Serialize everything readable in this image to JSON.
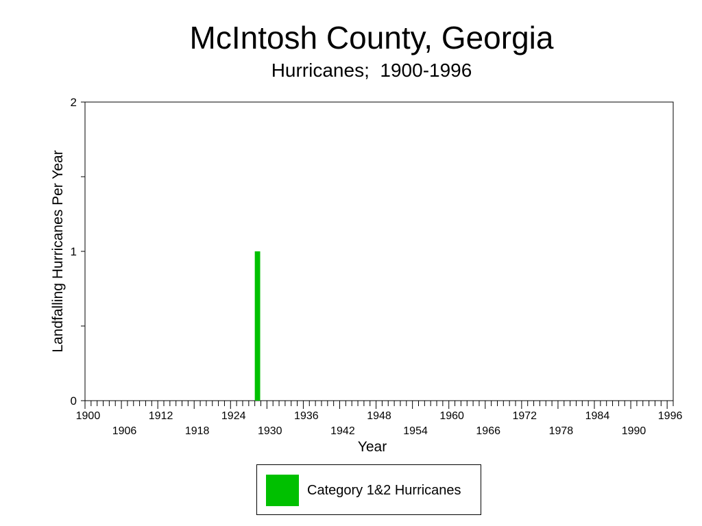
{
  "chart_data": {
    "type": "bar",
    "title": "McIntosh County, Georgia",
    "subtitle": "Hurricanes;  1900-1996",
    "xlabel": "Year",
    "ylabel": "Landfalling Hurricanes Per Year",
    "xlim": [
      1900,
      1997
    ],
    "ylim": [
      0,
      2
    ],
    "x_ticks_top": [
      "1900",
      "1912",
      "1924",
      "1936",
      "1948",
      "1960",
      "1972",
      "1984",
      "1996"
    ],
    "x_ticks_bottom": [
      "1906",
      "1918",
      "1930",
      "1942",
      "1954",
      "1966",
      "1978",
      "1990"
    ],
    "y_ticks": [
      "0",
      "1",
      "2"
    ],
    "series": [
      {
        "name": "Category 1&2 Hurricanes",
        "color": "#00c000",
        "points": [
          {
            "x": 1928,
            "y": 1
          }
        ]
      }
    ],
    "legend_position": "bottom-center",
    "grid": false
  }
}
